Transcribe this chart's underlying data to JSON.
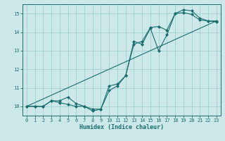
{
  "xlabel": "Humidex (Indice chaleur)",
  "bg_color": "#cce8e8",
  "line_color": "#1a6e6e",
  "grid_color": "#99cccc",
  "xlim": [
    -0.5,
    23.5
  ],
  "ylim": [
    9.5,
    15.5
  ],
  "xticks": [
    0,
    1,
    2,
    3,
    4,
    5,
    6,
    7,
    8,
    9,
    10,
    11,
    12,
    13,
    14,
    15,
    16,
    17,
    18,
    19,
    20,
    21,
    22,
    23
  ],
  "yticks": [
    10,
    11,
    12,
    13,
    14,
    15
  ],
  "series1_straight": {
    "x": [
      0,
      23
    ],
    "y": [
      10.0,
      14.6
    ]
  },
  "series2_zigzag": {
    "x": [
      0,
      1,
      2,
      3,
      4,
      5,
      6,
      7,
      8,
      9,
      10,
      11,
      12,
      13,
      14,
      15,
      16,
      17,
      18,
      19,
      20,
      21,
      22,
      23
    ],
    "y": [
      10.0,
      10.0,
      10.0,
      10.3,
      10.2,
      10.1,
      10.0,
      10.0,
      9.85,
      9.85,
      10.85,
      11.1,
      11.65,
      13.5,
      13.35,
      14.2,
      13.0,
      13.85,
      15.0,
      15.2,
      15.15,
      14.75,
      14.6,
      14.6
    ]
  },
  "series3_mixed": {
    "x": [
      0,
      1,
      2,
      3,
      4,
      5,
      6,
      7,
      8,
      9,
      10,
      11,
      12,
      13,
      14,
      15,
      16,
      17,
      18,
      19,
      20,
      21,
      22,
      23
    ],
    "y": [
      10.0,
      10.0,
      10.0,
      10.3,
      10.3,
      10.5,
      10.15,
      10.0,
      9.75,
      9.85,
      11.1,
      11.2,
      11.65,
      13.35,
      13.5,
      14.25,
      14.3,
      14.1,
      15.0,
      15.05,
      14.95,
      14.65,
      14.6,
      14.55
    ]
  }
}
